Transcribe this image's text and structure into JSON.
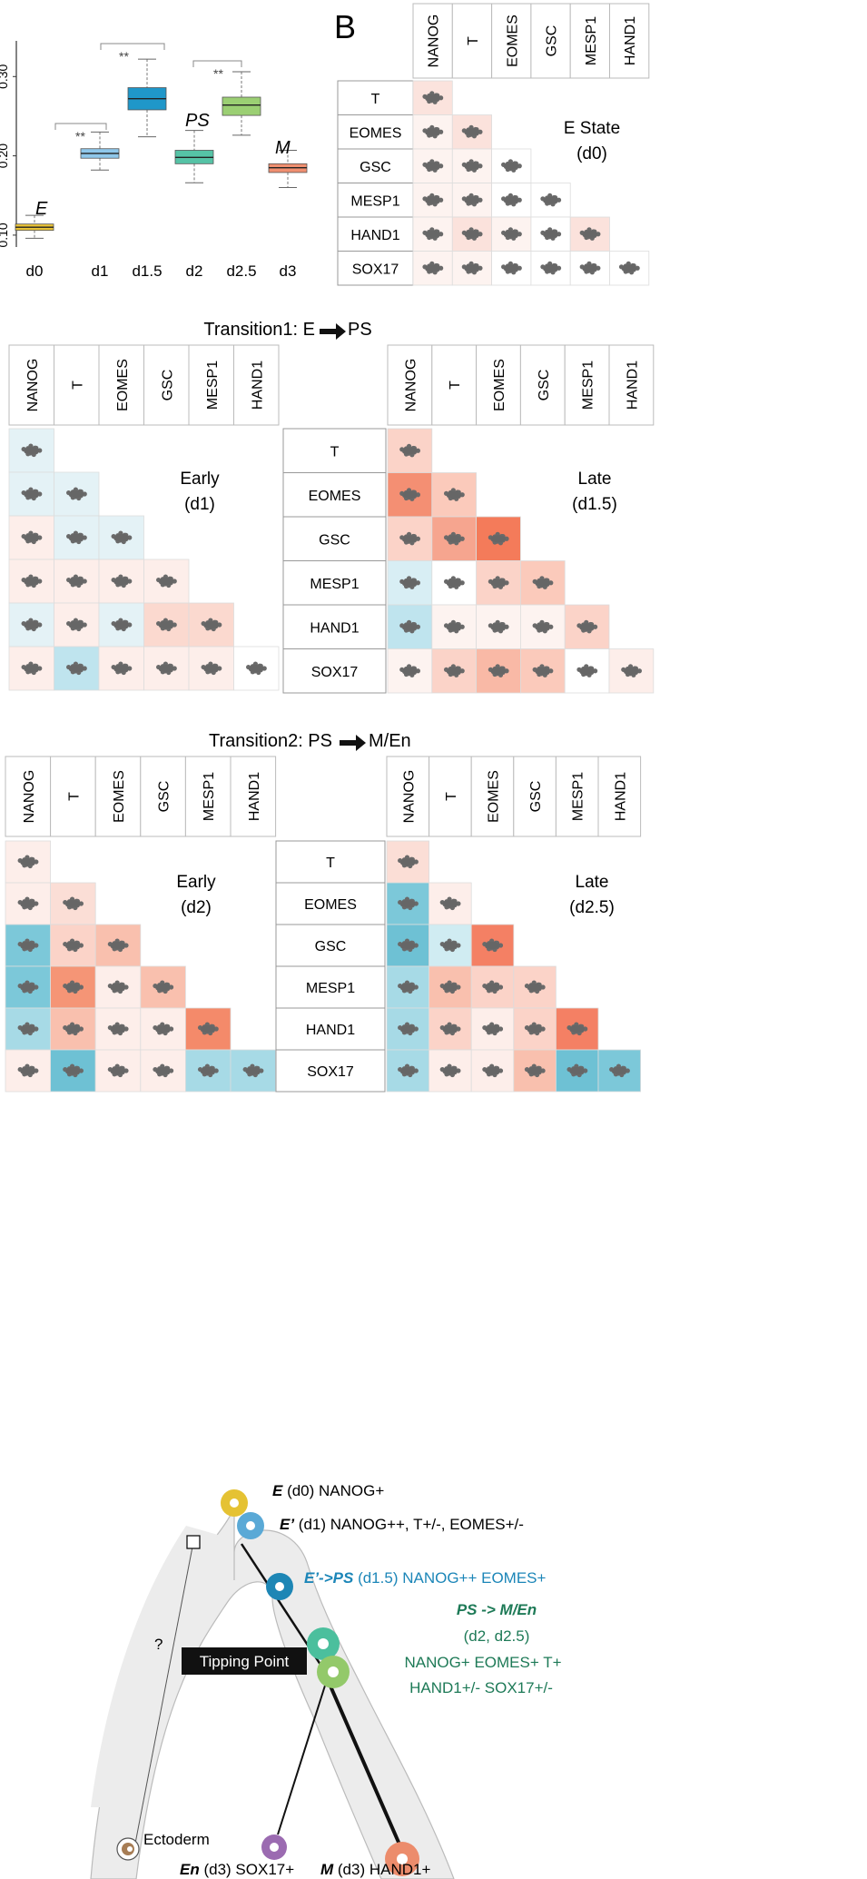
{
  "panel_a": {
    "chart_data": {
      "type": "boxplot",
      "categories": [
        "d0",
        "d1",
        "d1.5",
        "d2",
        "d2.5",
        "d3"
      ],
      "y_ticks": [
        "0.10",
        "0.20",
        "0.30"
      ],
      "boxes": [
        {
          "cat": "d0",
          "min": 0.096,
          "q1": 0.106,
          "median": 0.11,
          "q3": 0.114,
          "max": 0.125,
          "color": "#e8c238"
        },
        {
          "cat": "d1",
          "min": 0.182,
          "q1": 0.197,
          "median": 0.203,
          "q3": 0.209,
          "max": 0.23,
          "color": "#8fc7ea"
        },
        {
          "cat": "d1.5",
          "min": 0.224,
          "q1": 0.258,
          "median": 0.272,
          "q3": 0.286,
          "max": 0.322,
          "color": "#1f97c9"
        },
        {
          "cat": "d2",
          "min": 0.166,
          "q1": 0.19,
          "median": 0.198,
          "q3": 0.207,
          "max": 0.232,
          "color": "#56c3a6"
        },
        {
          "cat": "d2.5",
          "min": 0.226,
          "q1": 0.251,
          "median": 0.264,
          "q3": 0.274,
          "max": 0.306,
          "color": "#9bcf73"
        },
        {
          "cat": "d3",
          "min": 0.16,
          "q1": 0.179,
          "median": 0.185,
          "q3": 0.19,
          "max": 0.207,
          "color": "#f08f70"
        }
      ],
      "ylim": [
        0.085,
        0.345
      ]
    },
    "state_labels": {
      "E": "E",
      "PS": "PS",
      "M": "M"
    },
    "sig": "**"
  },
  "panel_b": {
    "letter": "B",
    "title_line1": "E State",
    "title_line2": "(d0)"
  },
  "transition1": {
    "title": "Transition1:  E",
    "target": "PS",
    "early_line1": "Early",
    "early_line2": "(d1)",
    "late_line1": "Late",
    "late_line2": "(d1.5)"
  },
  "transition2": {
    "title": "Transition2:  PS",
    "target": "M/En",
    "early_line1": "Early",
    "early_line2": "(d2)",
    "late_line1": "Late",
    "late_line2": "(d2.5)"
  },
  "genes_top": [
    "NANOG",
    "T",
    "EOMES",
    "GSC",
    "MESP1",
    "HAND1"
  ],
  "genes_side": [
    "T",
    "EOMES",
    "GSC",
    "MESP1",
    "HAND1",
    "SOX17"
  ],
  "matrices": {
    "b": [
      [
        "#fbe3dd"
      ],
      [
        "#fdf3f0",
        "#fbe2dc"
      ],
      [
        "#fdf3f0",
        "#fdf3f0",
        "#fff"
      ],
      [
        "#fdf3f0",
        "#fdf3f0",
        "#fff",
        "#fff"
      ],
      [
        "#fdf3f0",
        "#fbe2dc",
        "#fdf3f0",
        "#fff",
        "#fbe2dc"
      ],
      [
        "#fdf3f0",
        "#fdf3f0",
        "#fff",
        "#fff",
        "#fff",
        "#fff"
      ]
    ],
    "t1e": [
      [
        "#e4f2f6"
      ],
      [
        "#e4f2f6",
        "#e4f2f6"
      ],
      [
        "#fdeeea",
        "#e4f2f6",
        "#e4f2f6"
      ],
      [
        "#fdeeea",
        "#fdeeea",
        "#fdeeea",
        "#fdeeea"
      ],
      [
        "#e4f2f6",
        "#fdeeea",
        "#e4f2f6",
        "#fbd9cf",
        "#fbd9cf"
      ],
      [
        "#fdeeea",
        "#bfe4ee",
        "#fdeeea",
        "#fdeeea",
        "#fdeeea",
        "#fff"
      ]
    ],
    "t1l": [
      [
        "#fbd3c8"
      ],
      [
        "#f48f73",
        "#fbcabb"
      ],
      [
        "#fbd3c8",
        "#f6a58f",
        "#f47b5a"
      ],
      [
        "#d8eef4",
        "#fff",
        "#fbd3c8",
        "#fbcabb"
      ],
      [
        "#bfe4ee",
        "#fdf3f0",
        "#fdf3f0",
        "#fdf3f0",
        "#fbd3c8"
      ],
      [
        "#fdf3f0",
        "#fbd3c8",
        "#f9b9a6",
        "#fbcabb",
        "#fff",
        "#fdeeea"
      ]
    ],
    "t2e": [
      [
        "#fdeeea"
      ],
      [
        "#fdeeea",
        "#fbded6"
      ],
      [
        "#7cc8d9",
        "#fbd3c8",
        "#f9c0ae"
      ],
      [
        "#7cc8d9",
        "#f59576",
        "#fdeeea",
        "#f9c0ae"
      ],
      [
        "#a7dae6",
        "#f9c0ae",
        "#fdeeea",
        "#fdeeea",
        "#f48a6a"
      ],
      [
        "#fdeeea",
        "#6ec1d4",
        "#fdeeea",
        "#fdeeea",
        "#a7dae6",
        "#a7dae6"
      ]
    ],
    "t2l": [
      [
        "#fbded6"
      ],
      [
        "#7cc8d9",
        "#fdeeea"
      ],
      [
        "#6ec1d4",
        "#d0ecf2",
        "#f48064"
      ],
      [
        "#a7dae6",
        "#f9c0ae",
        "#fbd3c8",
        "#fbd3c8"
      ],
      [
        "#a7dae6",
        "#fbd3c8",
        "#fdeeea",
        "#fbd3c8",
        "#f48064"
      ],
      [
        "#a7dae6",
        "#fdeeea",
        "#fdeeea",
        "#f9c0ae",
        "#6ec1d4",
        "#7cc8d9"
      ]
    ]
  },
  "panel_c": {
    "E_bold": "E",
    "E_text": " (d0) NANOG+",
    "Ep_bold": "E’",
    "Ep_text": "  (d1) NANOG++, T+/-, EOMES+/-",
    "EPS_bold": "E’->PS",
    "EPS_text": "  (d1.5) NANOG++ EOMES+",
    "PSM_bold": "PS -> M/En",
    "PSM_line2": "(d2, d2.5)",
    "PSM_line3": "NANOG+ EOMES+ T+",
    "PSM_line4": "HAND1+/- SOX17+/-",
    "tipping": "Tipping Point",
    "question": "?",
    "ecto": "Ectoderm",
    "En_bold": "En",
    "En_text": " (d3) SOX17+",
    "M_bold": "M",
    "M_text": " (d3) HAND1+"
  }
}
